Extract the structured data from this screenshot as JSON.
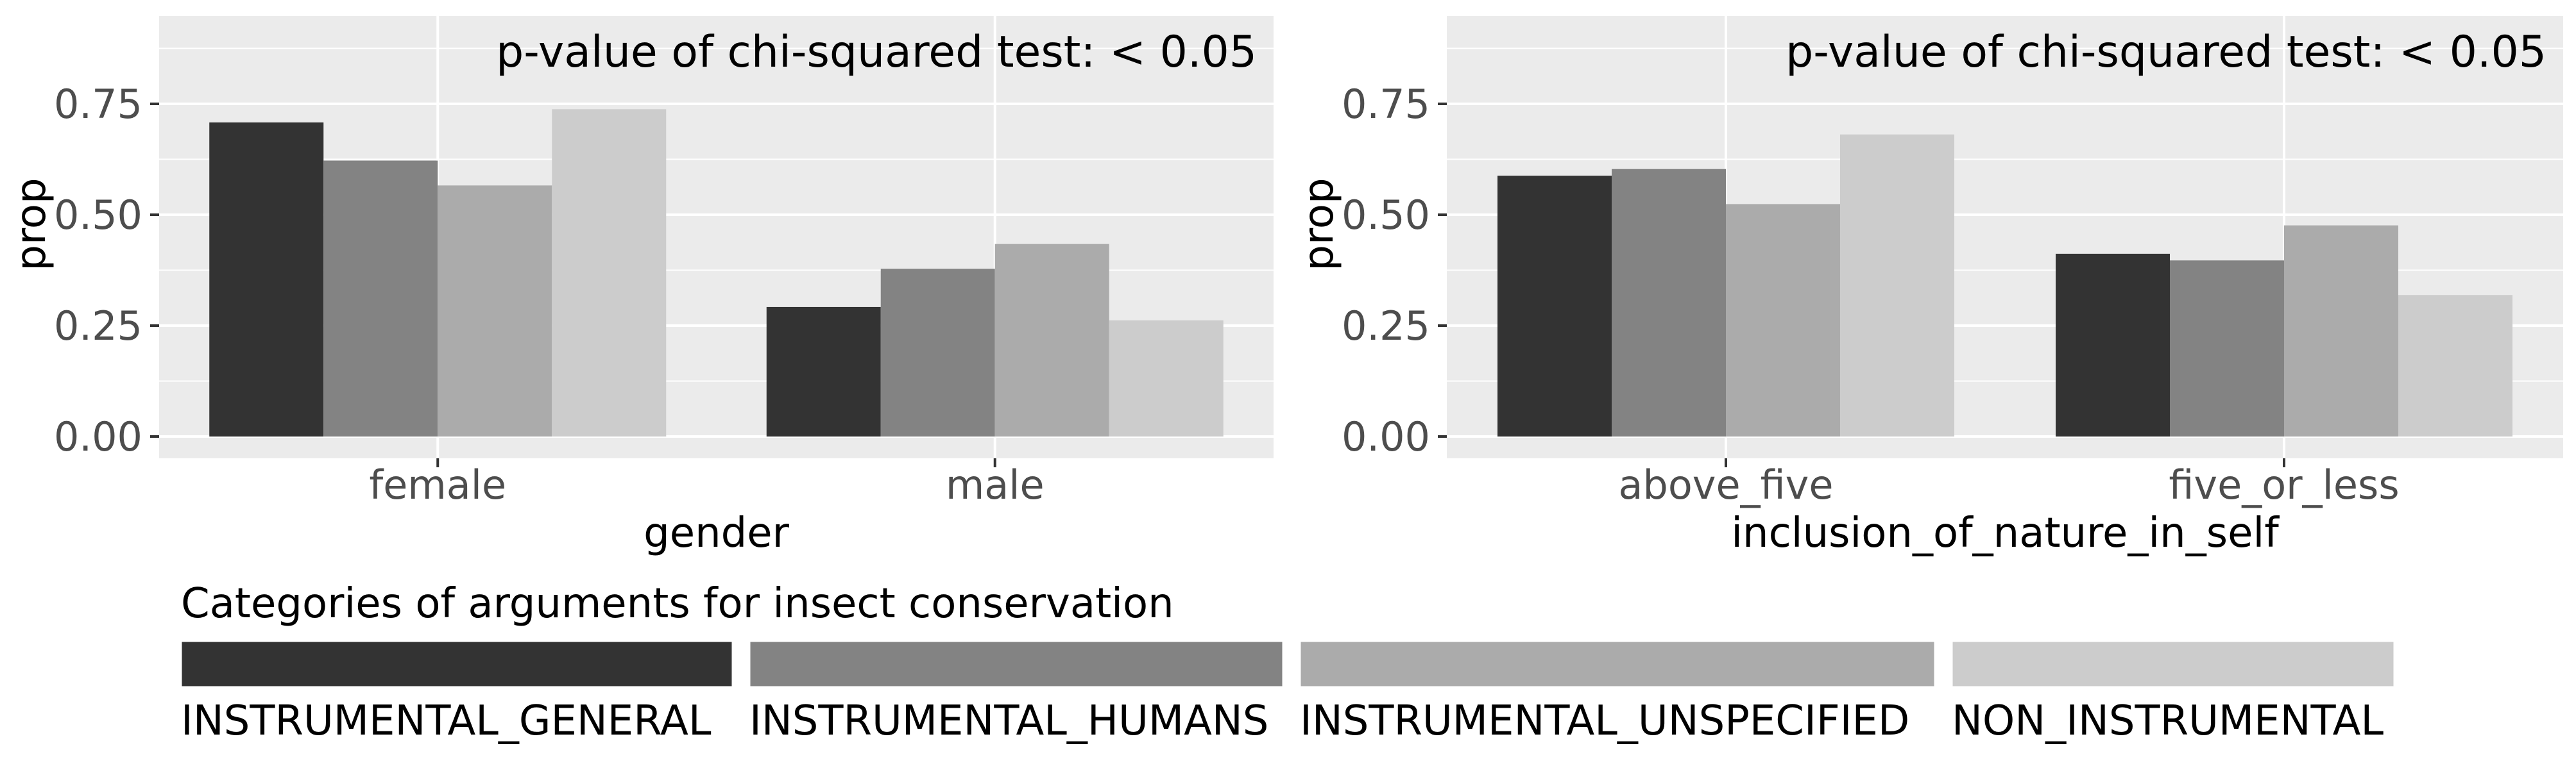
{
  "chart_data": [
    {
      "type": "bar",
      "annotation": "p-value of chi-squared test: < 0.05",
      "xlabel": "gender",
      "ylabel": "prop",
      "categories": [
        "female",
        "male"
      ],
      "ylim": [
        0,
        0.92
      ],
      "yticks": [
        "0.00",
        "0.25",
        "0.50",
        "0.75"
      ],
      "series": [
        {
          "name": "INSTRUMENTAL_GENERAL",
          "values": [
            0.708,
            0.292
          ]
        },
        {
          "name": "INSTRUMENTAL_HUMANS",
          "values": [
            0.622,
            0.378
          ]
        },
        {
          "name": "INSTRUMENTAL_UNSPECIFIED",
          "values": [
            0.566,
            0.434
          ]
        },
        {
          "name": "NON_INSTRUMENTAL",
          "values": [
            0.738,
            0.262
          ]
        }
      ]
    },
    {
      "type": "bar",
      "annotation": "p-value of chi-squared test: < 0.05",
      "xlabel": "inclusion_of_nature_in_self",
      "ylabel": "prop",
      "categories": [
        "above_five",
        "five_or_less"
      ],
      "ylim": [
        0,
        0.92
      ],
      "yticks": [
        "0.00",
        "0.25",
        "0.50",
        "0.75"
      ],
      "series": [
        {
          "name": "INSTRUMENTAL_GENERAL",
          "values": [
            0.588,
            0.412
          ]
        },
        {
          "name": "INSTRUMENTAL_HUMANS",
          "values": [
            0.603,
            0.397
          ]
        },
        {
          "name": "INSTRUMENTAL_UNSPECIFIED",
          "values": [
            0.524,
            0.476
          ]
        },
        {
          "name": "NON_INSTRUMENTAL",
          "values": [
            0.681,
            0.319
          ]
        }
      ]
    }
  ],
  "legend": {
    "title": "Categories of arguments for insect conservation",
    "placement": "bottom",
    "items": [
      {
        "label": "INSTRUMENTAL_GENERAL",
        "color": "#333333"
      },
      {
        "label": "INSTRUMENTAL_HUMANS",
        "color": "#838383"
      },
      {
        "label": "INSTRUMENTAL_UNSPECIFIED",
        "color": "#ababab"
      },
      {
        "label": "NON_INSTRUMENTAL",
        "color": "#cccccc"
      }
    ]
  },
  "colors": {
    "panel_background": "#ebebeb",
    "grid": "#ffffff",
    "axis_text": "#4d4d4d"
  }
}
